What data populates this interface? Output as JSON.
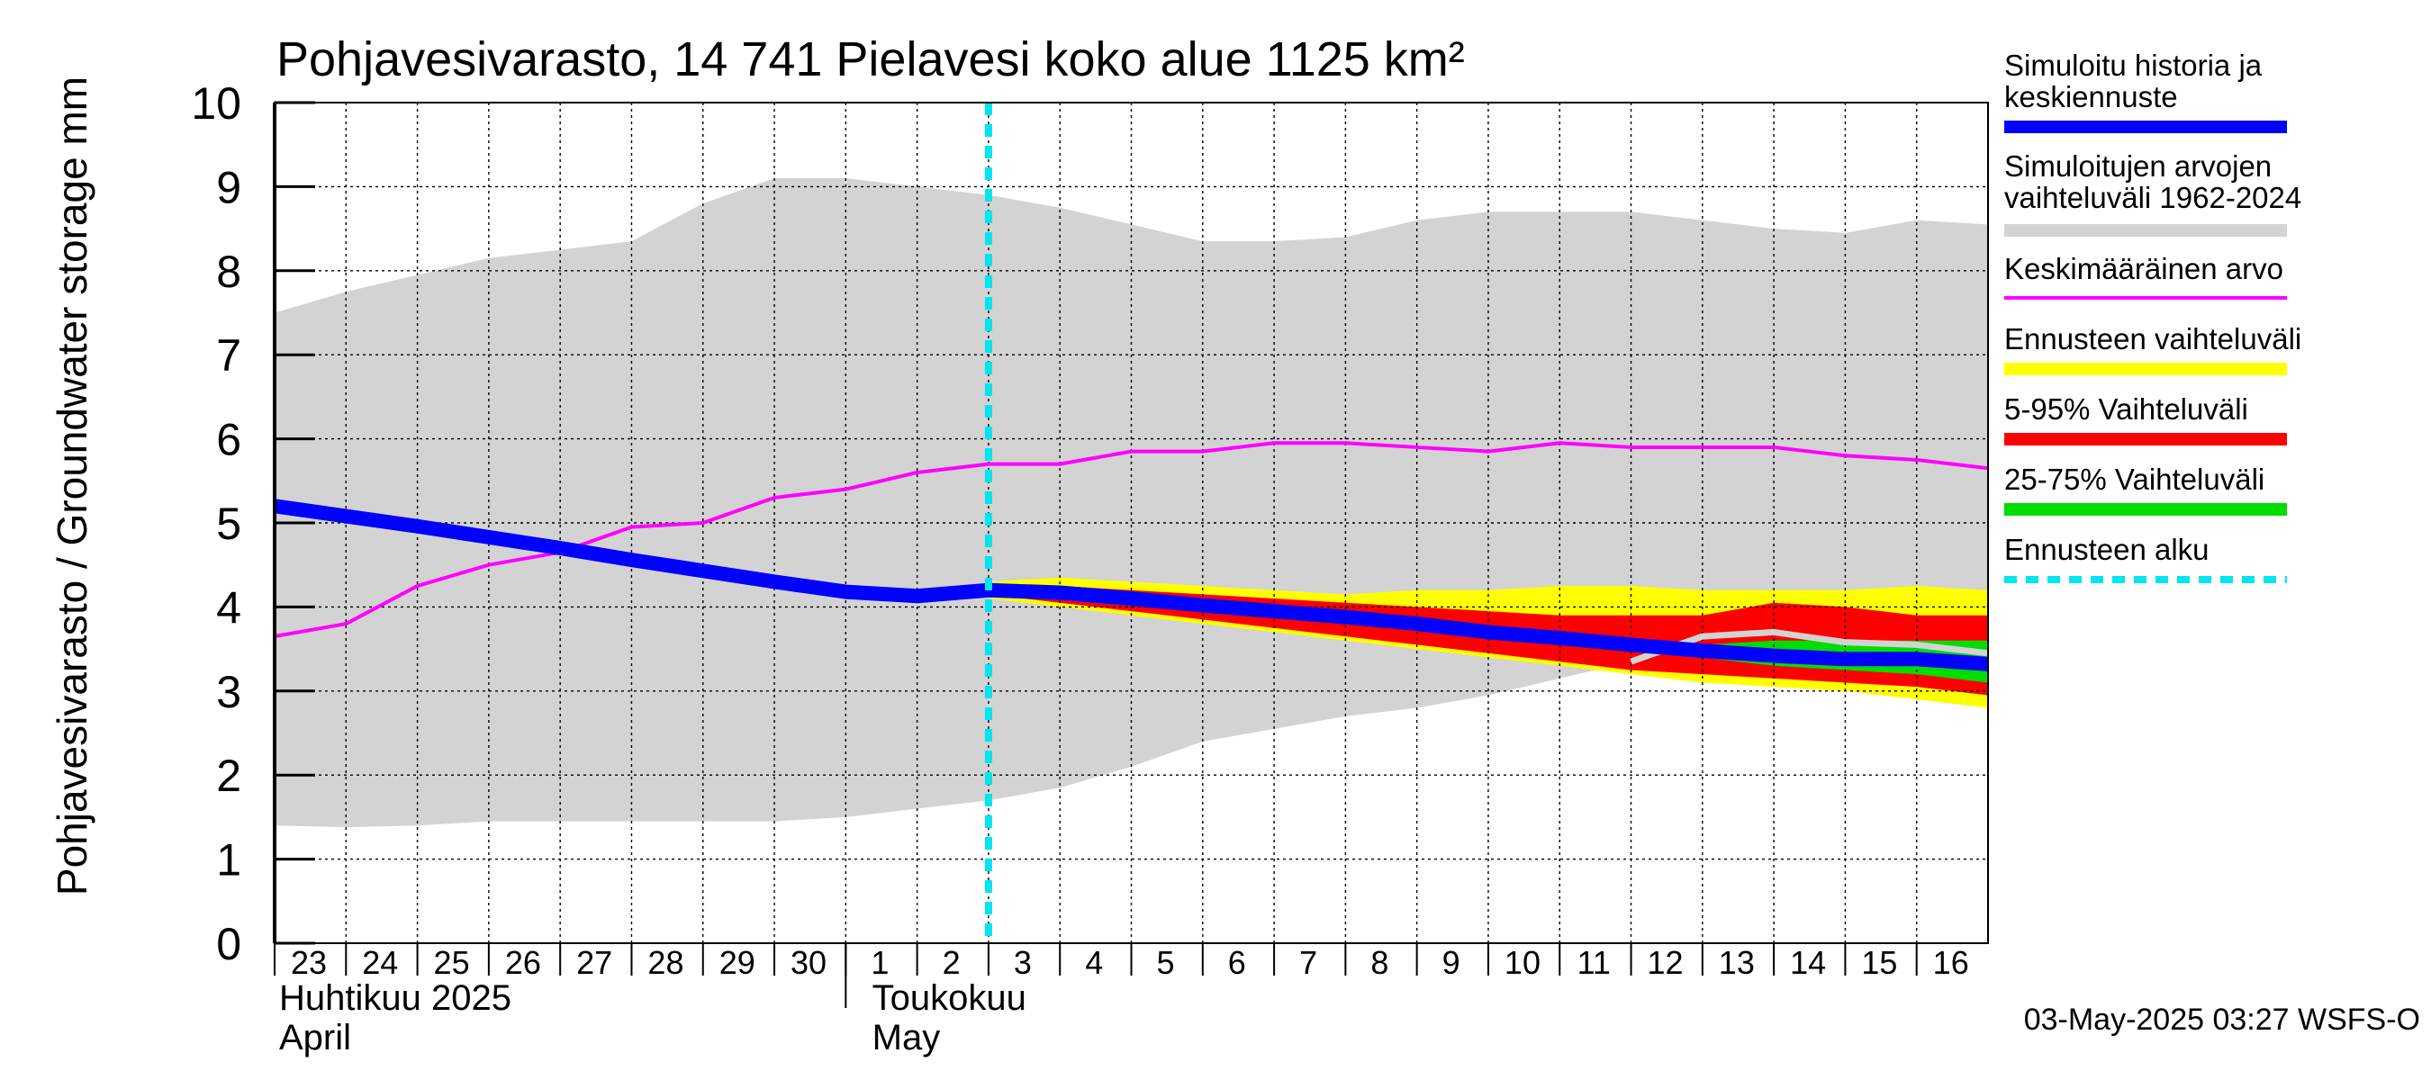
{
  "chart_data": {
    "type": "area",
    "title": "Pohjavesivarasto, 14 741 Pielavesi koko alue 1125 km²",
    "ylabel": "Pohjavesivarasto / Groundwater storage   mm",
    "ylim": [
      0,
      10
    ],
    "y_ticks": [
      "0",
      "1",
      "2",
      "3",
      "4",
      "5",
      "6",
      "7",
      "8",
      "9",
      "10"
    ],
    "x_range": [
      0,
      24
    ],
    "x_ticks": [
      "23",
      "24",
      "25",
      "26",
      "27",
      "28",
      "29",
      "30",
      "1",
      "2",
      "3",
      "4",
      "5",
      "6",
      "7",
      "8",
      "9",
      "10",
      "11",
      "12",
      "13",
      "14",
      "15",
      "16"
    ],
    "month_labels": [
      {
        "line1": "Huhtikuu  2025",
        "line2": "April"
      },
      {
        "line1": "Toukokuu",
        "line2": "May"
      }
    ],
    "forecast_start_x": 10,
    "grid": true,
    "legend_placement": "right",
    "timestamp": "03-May-2025 03:27 WSFS-O",
    "colors": {
      "history": "#0000ff",
      "range": "#d3d3d3",
      "mean": "#ff00ff",
      "forecast_range": "#ffff00",
      "p5_95": "#ff0000",
      "p25_75": "#00dd00",
      "forecast_start": "#00e5ee"
    },
    "legend": [
      {
        "key": "history",
        "lines": [
          "Simuloitu historia ja",
          "keskiennuste"
        ],
        "style": "thick"
      },
      {
        "key": "range",
        "lines": [
          "Simuloitujen arvojen",
          "vaihteluväli 1962-2024"
        ],
        "style": "thick"
      },
      {
        "key": "mean",
        "lines": [
          "Keskimääräinen arvo"
        ],
        "style": "thin"
      },
      {
        "key": "forecast_range",
        "lines": [
          "Ennusteen vaihteluväli"
        ],
        "style": "thick"
      },
      {
        "key": "p5_95",
        "lines": [
          "5-95% Vaihteluväli"
        ],
        "style": "thick"
      },
      {
        "key": "p25_75",
        "lines": [
          "25-75% Vaihteluväli"
        ],
        "style": "thick"
      },
      {
        "key": "forecast_start",
        "lines": [
          "Ennusteen alku"
        ],
        "style": "dashed"
      }
    ],
    "series": {
      "range_upper": {
        "x": [
          0,
          1,
          2,
          3,
          4,
          5,
          6,
          7,
          8,
          9,
          10,
          11,
          12,
          13,
          14,
          15,
          16,
          17,
          18,
          19,
          20,
          21,
          22,
          23,
          24
        ],
        "y": [
          7.5,
          7.75,
          7.95,
          8.15,
          8.25,
          8.35,
          8.8,
          9.1,
          9.1,
          9.0,
          8.9,
          8.75,
          8.55,
          8.35,
          8.35,
          8.4,
          8.6,
          8.7,
          8.7,
          8.7,
          8.6,
          8.5,
          8.45,
          8.6,
          8.55
        ]
      },
      "range_lower": {
        "x": [
          0,
          1,
          2,
          3,
          4,
          5,
          6,
          7,
          8,
          9,
          10,
          11,
          12,
          13,
          14,
          15,
          16,
          17,
          18,
          19,
          20,
          21,
          22,
          23,
          24
        ],
        "y": [
          1.4,
          1.38,
          1.4,
          1.45,
          1.45,
          1.45,
          1.45,
          1.45,
          1.5,
          1.6,
          1.7,
          1.85,
          2.1,
          2.4,
          2.55,
          2.7,
          2.8,
          2.95,
          3.15,
          3.35,
          3.55,
          3.7,
          3.5,
          3.4,
          3.3
        ]
      },
      "forecast_upper": {
        "x": [
          10,
          11,
          12,
          13,
          14,
          15,
          16,
          17,
          18,
          19,
          20,
          21,
          22,
          23,
          24
        ],
        "y": [
          4.3,
          4.35,
          4.3,
          4.25,
          4.2,
          4.15,
          4.2,
          4.2,
          4.25,
          4.25,
          4.2,
          4.2,
          4.2,
          4.25,
          4.2
        ]
      },
      "forecast_lower": {
        "x": [
          10,
          11,
          12,
          13,
          14,
          15,
          16,
          17,
          18,
          19,
          20,
          21,
          22,
          23,
          24
        ],
        "y": [
          4.1,
          4.0,
          3.9,
          3.8,
          3.7,
          3.6,
          3.5,
          3.4,
          3.3,
          3.2,
          3.1,
          3.05,
          3.0,
          2.9,
          2.8
        ]
      },
      "p95": {
        "x": [
          10,
          11,
          12,
          13,
          14,
          15,
          16,
          17,
          18,
          19,
          20,
          21,
          22,
          23,
          24
        ],
        "y": [
          4.25,
          4.25,
          4.2,
          4.15,
          4.1,
          4.05,
          4.0,
          3.95,
          3.9,
          3.9,
          3.9,
          4.05,
          4.0,
          3.9,
          3.9
        ]
      },
      "p5": {
        "x": [
          10,
          11,
          12,
          13,
          14,
          15,
          16,
          17,
          18,
          19,
          20,
          21,
          22,
          23,
          24
        ],
        "y": [
          4.15,
          4.05,
          3.95,
          3.85,
          3.75,
          3.65,
          3.55,
          3.45,
          3.35,
          3.25,
          3.2,
          3.15,
          3.1,
          3.05,
          2.95
        ]
      },
      "p75": {
        "x": [
          19,
          20,
          21,
          22,
          23,
          24
        ],
        "y": [
          3.55,
          3.55,
          3.6,
          3.6,
          3.6,
          3.6
        ]
      },
      "p25": {
        "x": [
          19,
          20,
          21,
          22,
          23,
          24
        ],
        "y": [
          3.5,
          3.4,
          3.3,
          3.25,
          3.2,
          3.1
        ]
      },
      "mean": {
        "x": [
          0,
          1,
          2,
          3,
          4,
          5,
          6,
          7,
          8,
          9,
          10,
          11,
          12,
          13,
          14,
          15,
          16,
          17,
          18,
          19,
          20,
          21,
          22,
          23,
          24
        ],
        "y": [
          3.65,
          3.8,
          4.25,
          4.5,
          4.65,
          4.95,
          5.0,
          5.3,
          5.4,
          5.6,
          5.7,
          5.7,
          5.85,
          5.85,
          5.95,
          5.95,
          5.9,
          5.85,
          5.95,
          5.9,
          5.9,
          5.9,
          5.8,
          5.75,
          5.65
        ]
      },
      "history": {
        "x": [
          0,
          1,
          2,
          3,
          4,
          5,
          6,
          7,
          8,
          9,
          10,
          11,
          12,
          13,
          14,
          15,
          16,
          17,
          18,
          19,
          20,
          21,
          22,
          23,
          24
        ],
        "y": [
          5.2,
          5.08,
          4.96,
          4.83,
          4.7,
          4.56,
          4.43,
          4.3,
          4.18,
          4.13,
          4.2,
          4.17,
          4.1,
          4.02,
          3.95,
          3.88,
          3.8,
          3.7,
          3.63,
          3.55,
          3.48,
          3.42,
          3.38,
          3.38,
          3.32
        ]
      },
      "grey_line": {
        "x": [
          19,
          20,
          21,
          22,
          23,
          24
        ],
        "y": [
          3.35,
          3.65,
          3.7,
          3.58,
          3.55,
          3.45
        ]
      }
    }
  }
}
